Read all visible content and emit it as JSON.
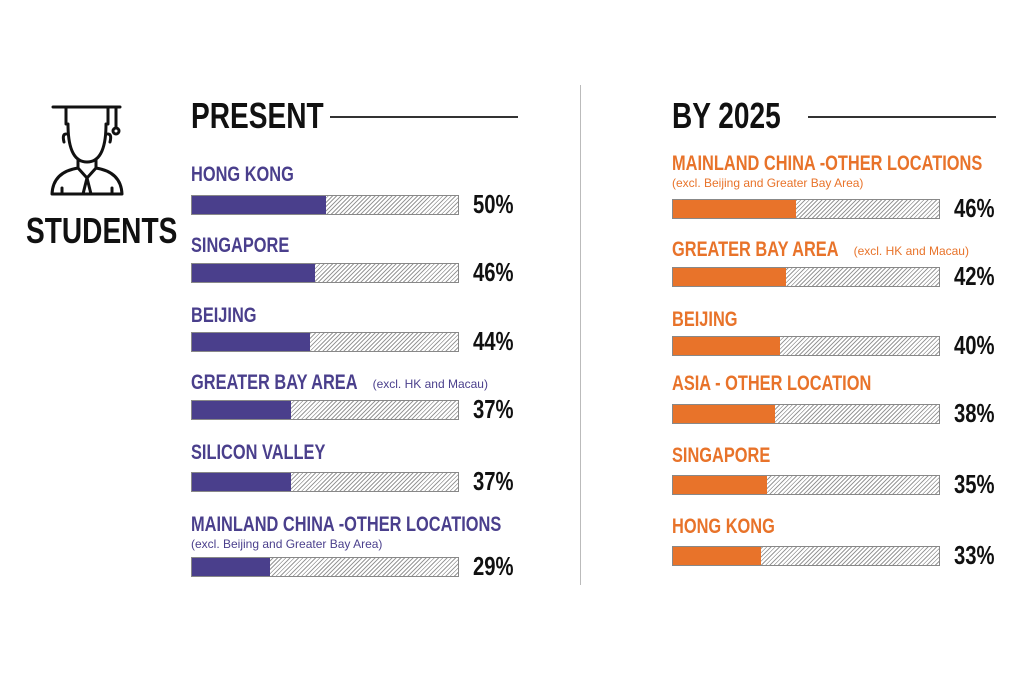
{
  "side_label": "STUDENTS",
  "icon": "graduate-student-icon",
  "chart_data": [
    {
      "type": "bar",
      "orientation": "horizontal",
      "title": "PRESENT",
      "color": "#4a3f8c",
      "xlim": [
        0,
        100
      ],
      "categories": [
        "HONG KONG",
        "SINGAPORE",
        "BEIJING",
        "GREATER BAY AREA",
        "SILICON VALLEY",
        "MAINLAND CHINA -OTHER LOCATIONS"
      ],
      "notes": [
        "",
        "",
        "",
        "(excl. HK and Macau)",
        "",
        "(excl. Beijing and Greater Bay Area)"
      ],
      "values": [
        50,
        46,
        44,
        37,
        37,
        29
      ],
      "data_labels": [
        "50%",
        "46%",
        "44%",
        "37%",
        "37%",
        "29%"
      ]
    },
    {
      "type": "bar",
      "orientation": "horizontal",
      "title": "BY 2025",
      "color": "#e8732a",
      "xlim": [
        0,
        100
      ],
      "categories": [
        "MAINLAND CHINA -OTHER LOCATIONS",
        "GREATER BAY AREA",
        "BEIJING",
        "ASIA - OTHER LOCATION",
        "SINGAPORE",
        "HONG KONG"
      ],
      "notes": [
        "(excl. Beijing and Greater Bay Area)",
        "(excl. HK and Macau)",
        "",
        "",
        "",
        ""
      ],
      "values": [
        46,
        42,
        40,
        38,
        35,
        33
      ],
      "data_labels": [
        "46%",
        "42%",
        "40%",
        "38%",
        "35%",
        "33%"
      ]
    }
  ]
}
